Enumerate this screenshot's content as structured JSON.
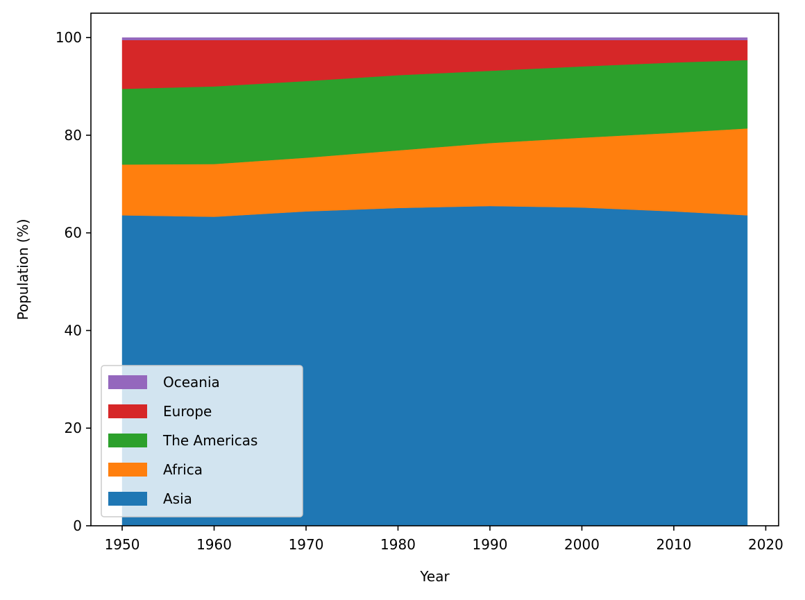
{
  "chart_data": {
    "type": "area",
    "stacked": true,
    "title": "",
    "xlabel": "Year",
    "ylabel": "Population (%)",
    "xlim": [
      1946.6,
      2021.4
    ],
    "ylim": [
      0,
      105
    ],
    "xticks": [
      1950,
      1960,
      1970,
      1980,
      1990,
      2000,
      2010,
      2020
    ],
    "yticks": [
      0,
      20,
      40,
      60,
      80,
      100
    ],
    "x": [
      1950,
      1960,
      1970,
      1980,
      1990,
      2000,
      2010,
      2018
    ],
    "series": [
      {
        "name": "Asia",
        "color": "#1f77b4",
        "values": [
          63.6,
          63.3,
          64.4,
          65.1,
          65.5,
          65.2,
          64.4,
          63.6
        ]
      },
      {
        "name": "Africa",
        "color": "#ff7f0e",
        "values": [
          10.4,
          10.8,
          11.0,
          11.8,
          12.9,
          14.3,
          16.1,
          17.8
        ]
      },
      {
        "name": "The Americas",
        "color": "#2ca02c",
        "values": [
          15.5,
          15.9,
          15.7,
          15.4,
          14.8,
          14.6,
          14.4,
          14.0
        ]
      },
      {
        "name": "Europe",
        "color": "#d62728",
        "values": [
          10.0,
          9.5,
          8.4,
          7.3,
          6.3,
          5.4,
          4.6,
          4.1
        ]
      },
      {
        "name": "Oceania",
        "color": "#9467bd",
        "values": [
          0.5,
          0.5,
          0.5,
          0.4,
          0.5,
          0.5,
          0.5,
          0.5
        ]
      }
    ],
    "legend": {
      "location": "lower-left",
      "order": [
        "Oceania",
        "Europe",
        "The Americas",
        "Africa",
        "Asia"
      ]
    },
    "grid": false
  }
}
